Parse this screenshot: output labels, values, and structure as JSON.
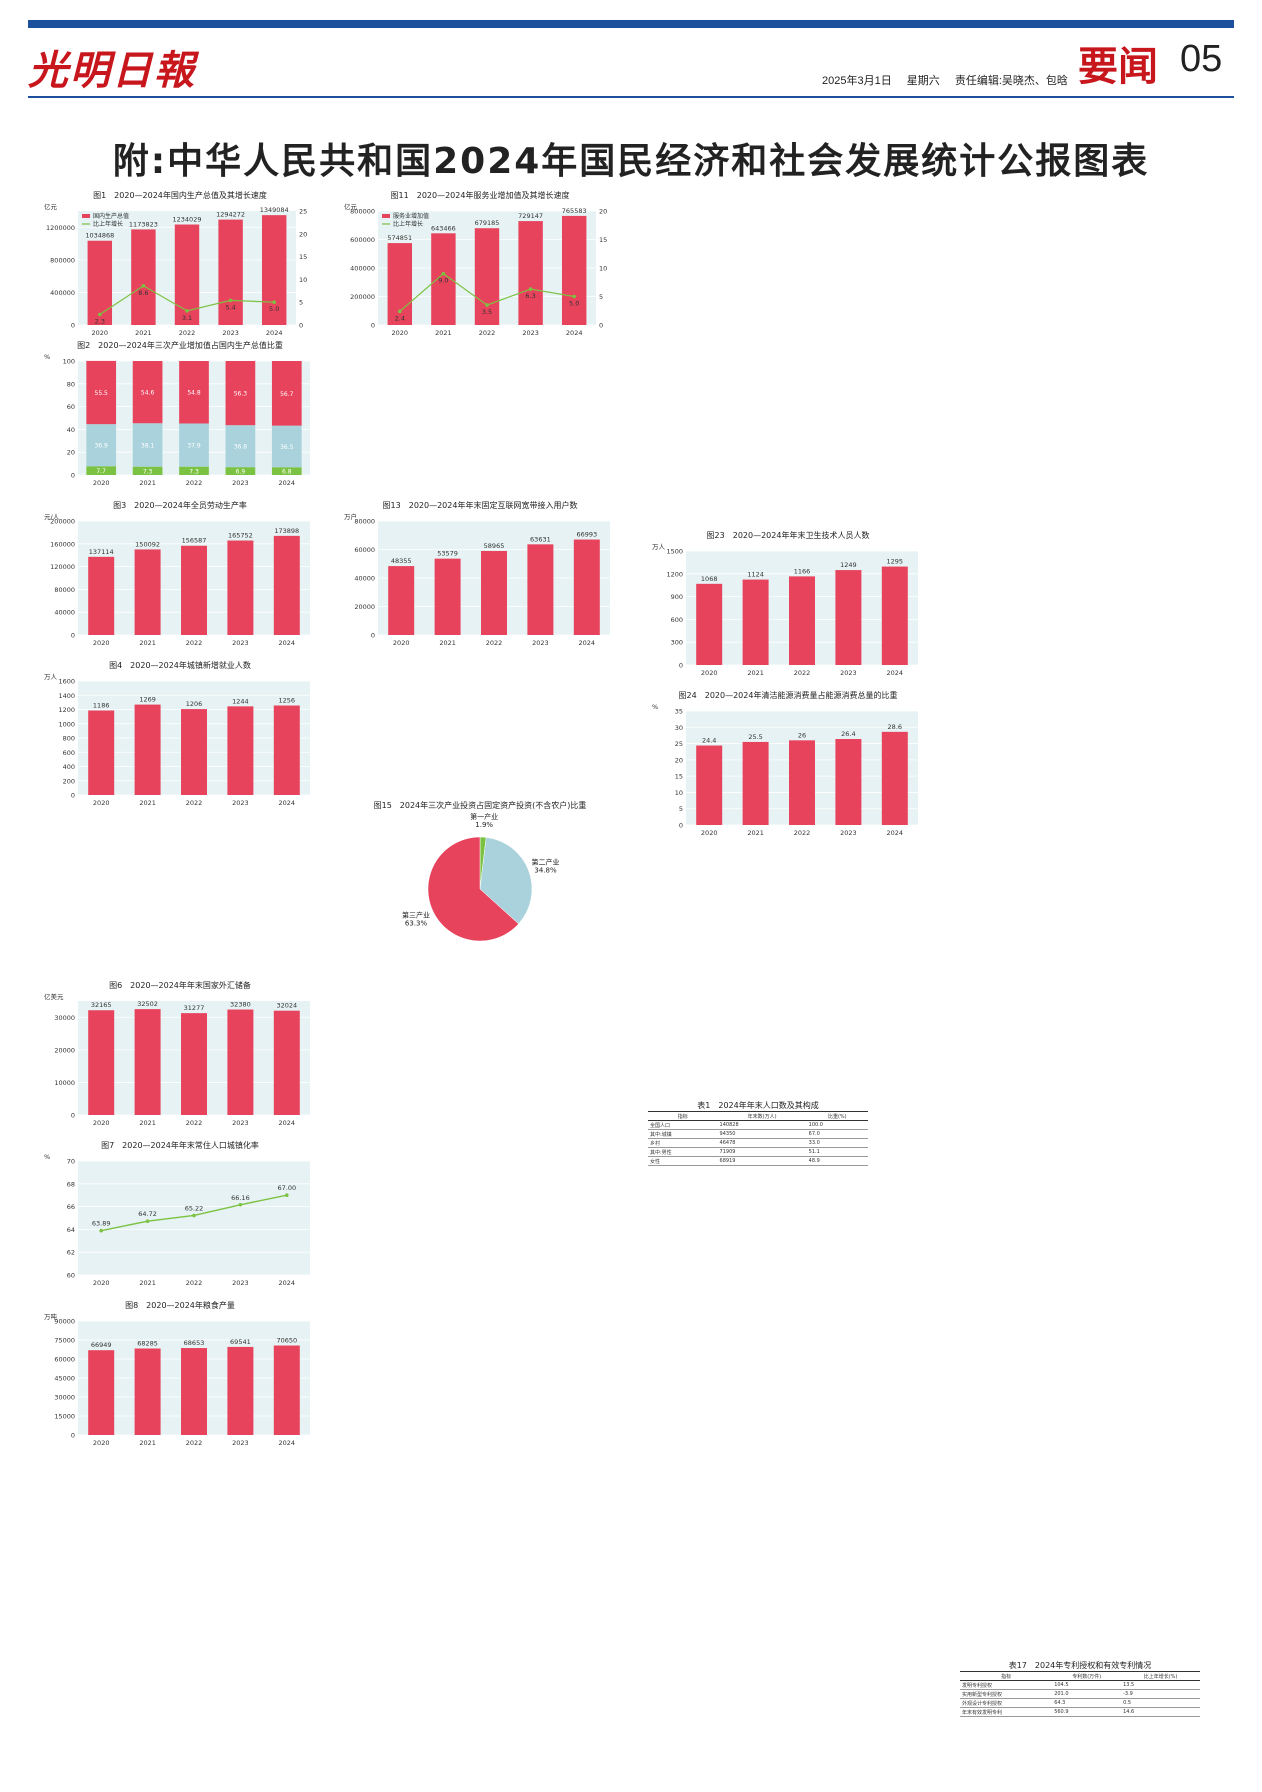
{
  "masthead": {
    "logo": "光明日報",
    "date": "2025年3月1日",
    "weekday": "星期六",
    "editors": "责任编辑:吴晓杰、包晗",
    "section": "要闻",
    "page_number": "05",
    "colors": {
      "brand_red": "#c8161d",
      "rule_blue": "#1c4f9c"
    }
  },
  "headline": "附:中华人民共和国2024年国民经济和社会发展统计公报图表",
  "chart_data": [
    {
      "id": "fig1",
      "type": "bar",
      "title": "图1　2020—2024年国内生产总值及其增长速度",
      "ylabel": "亿元",
      "y2label": "%",
      "categories": [
        "2020",
        "2021",
        "2022",
        "2023",
        "2024"
      ],
      "series": [
        {
          "name": "国内生产总值",
          "values": [
            1034868,
            1173823,
            1234029,
            1294272,
            1349084
          ]
        },
        {
          "name": "比上年增长",
          "values": [
            2.3,
            8.6,
            3.1,
            5.4,
            5.0
          ]
        }
      ],
      "ylim": [
        0,
        1400000
      ],
      "y2lim": [
        0,
        25
      ],
      "yticks": [
        "0",
        "400000",
        "800000",
        "1200000"
      ],
      "y2ticks": [
        "0",
        "5",
        "10",
        "15",
        "20",
        "25"
      ]
    },
    {
      "id": "fig2",
      "type": "bar",
      "title": "图2　2020—2024年三次产业增加值占国内生产总值比重",
      "ylabel": "%",
      "categories": [
        "2020",
        "2021",
        "2022",
        "2023",
        "2024"
      ],
      "series": [
        {
          "name": "第一产业",
          "values": [
            7.7,
            7.3,
            7.3,
            6.9,
            6.8
          ]
        },
        {
          "name": "第二产业",
          "values": [
            36.9,
            38.1,
            37.9,
            36.8,
            36.5
          ]
        },
        {
          "name": "第三产业",
          "values": [
            55.5,
            54.6,
            54.8,
            56.3,
            56.7
          ]
        }
      ],
      "ylim": [
        0,
        100
      ],
      "yticks": [
        "0",
        "20",
        "40",
        "60",
        "80",
        "100"
      ]
    },
    {
      "id": "fig3",
      "type": "bar",
      "title": "图3　2020—2024年全员劳动生产率",
      "ylabel": "元/人",
      "categories": [
        "2020",
        "2021",
        "2022",
        "2023",
        "2024"
      ],
      "series": [
        {
          "name": "",
          "values": [
            137114,
            150092,
            156587,
            165752,
            173898
          ]
        }
      ],
      "ylim": [
        0,
        200000
      ],
      "yticks": [
        "0",
        "40000",
        "80000",
        "120000",
        "160000",
        "200000"
      ]
    },
    {
      "id": "fig4",
      "type": "bar",
      "title": "图4　2020—2024年城镇新增就业人数",
      "ylabel": "万人",
      "categories": [
        "2020",
        "2021",
        "2022",
        "2023",
        "2024"
      ],
      "series": [
        {
          "name": "",
          "values": [
            1186,
            1269,
            1206,
            1244,
            1256
          ]
        }
      ],
      "ylim": [
        0,
        1600
      ],
      "yticks": [
        "0",
        "200",
        "400",
        "600",
        "800",
        "1000",
        "1200",
        "1400",
        "1600"
      ]
    },
    {
      "id": "fig6",
      "type": "bar",
      "title": "图6　2020—2024年年末国家外汇储备",
      "ylabel": "亿美元",
      "categories": [
        "2020",
        "2021",
        "2022",
        "2023",
        "2024"
      ],
      "series": [
        {
          "name": "",
          "values": [
            32165,
            32502,
            31277,
            32380,
            32024
          ]
        }
      ],
      "ylim": [
        0,
        35000
      ],
      "yticks": [
        "0",
        "10000",
        "20000",
        "30000"
      ]
    },
    {
      "id": "fig8",
      "type": "bar",
      "title": "图8　2020—2024年粮食产量",
      "ylabel": "万吨",
      "categories": [
        "2020",
        "2021",
        "2022",
        "2023",
        "2024"
      ],
      "series": [
        {
          "name": "",
          "values": [
            66949,
            68285,
            68653,
            69541,
            70650
          ]
        }
      ],
      "ylim": [
        0,
        90000
      ],
      "yticks": [
        "0",
        "15000",
        "30000",
        "45000",
        "60000",
        "75000",
        "90000"
      ]
    },
    {
      "id": "fig11",
      "type": "bar",
      "title": "图11　2020—2024年服务业增加值及其增长速度",
      "ylabel": "亿元",
      "y2label": "%",
      "categories": [
        "2020",
        "2021",
        "2022",
        "2023",
        "2024"
      ],
      "series": [
        {
          "name": "服务业增加值",
          "values": [
            574851,
            643466,
            679185,
            729147,
            765583
          ]
        },
        {
          "name": "比上年增长",
          "values": [
            2.4,
            9.0,
            3.5,
            6.3,
            5.0
          ]
        }
      ],
      "ylim": [
        0,
        800000
      ],
      "y2lim": [
        0,
        20
      ],
      "yticks": [
        "0",
        "200000",
        "400000",
        "600000",
        "800000"
      ],
      "y2ticks": [
        "0",
        "5",
        "10",
        "15",
        "20"
      ]
    },
    {
      "id": "fig13",
      "type": "bar",
      "title": "图13　2020—2024年年末固定互联网宽带接入用户数",
      "ylabel": "万户",
      "categories": [
        "2020",
        "2021",
        "2022",
        "2023",
        "2024"
      ],
      "series": [
        {
          "name": "",
          "values": [
            48355,
            53579,
            58965,
            63631,
            66993
          ]
        }
      ],
      "ylim": [
        0,
        80000
      ],
      "yticks": [
        "0",
        "20000",
        "40000",
        "60000",
        "80000"
      ]
    },
    {
      "id": "fig23",
      "type": "bar",
      "title": "图23　2020—2024年年末卫生技术人员人数",
      "ylabel": "万人",
      "categories": [
        "2020",
        "2021",
        "2022",
        "2023",
        "2024"
      ],
      "series": [
        {
          "name": "",
          "values": [
            1068,
            1124,
            1166,
            1249,
            1295
          ]
        }
      ],
      "ylim": [
        0,
        1500
      ],
      "yticks": [
        "0",
        "300",
        "600",
        "900",
        "1200",
        "1500"
      ]
    },
    {
      "id": "fig24",
      "type": "bar",
      "title": "图24　2020—2024年清洁能源消费量占能源消费总量的比重",
      "ylabel": "%",
      "categories": [
        "2020",
        "2021",
        "2022",
        "2023",
        "2024"
      ],
      "series": [
        {
          "name": "",
          "values": [
            24.4,
            25.5,
            26.0,
            26.4,
            28.6
          ]
        }
      ],
      "ylim": [
        0,
        35
      ],
      "yticks": [
        "0",
        "5",
        "10",
        "15",
        "20",
        "25",
        "30",
        "35"
      ]
    },
    {
      "id": "fig15",
      "type": "pie",
      "title": "图15　2024年三次产业投资占固定资产投资(不含农户)比重",
      "slices": [
        {
          "name": "第一产业",
          "value": 1.9
        },
        {
          "name": "第二产业",
          "value": 34.8
        },
        {
          "name": "第三产业",
          "value": 63.3
        }
      ]
    },
    {
      "id": "fig7",
      "type": "line",
      "title": "图7　2020—2024年年末常住人口城镇化率",
      "ylabel": "%",
      "categories": [
        "2020",
        "2021",
        "2022",
        "2023",
        "2024"
      ],
      "series": [
        {
          "name": "",
          "values": [
            63.89,
            64.72,
            65.22,
            66.16,
            67.0
          ]
        }
      ],
      "ylim": [
        60,
        70
      ],
      "yticks": [
        "60",
        "62",
        "64",
        "66",
        "68",
        "70"
      ]
    }
  ],
  "tables": [
    {
      "title": "表1　2024年年末人口数及其构成",
      "headers": [
        "指标",
        "年末数(万人)",
        "比重(%)"
      ],
      "rows": [
        [
          "全国人口",
          "140828",
          "100.0"
        ],
        [
          "其中:城镇",
          "94350",
          "67.0"
        ],
        [
          "乡村",
          "46478",
          "33.0"
        ],
        [
          "其中:男性",
          "71909",
          "51.1"
        ],
        [
          "女性",
          "68919",
          "48.9"
        ]
      ]
    },
    {
      "title": "表17　2024年专利授权和有效专利情况",
      "headers": [
        "指标",
        "专利数(万件)",
        "比上年增长(%)"
      ],
      "rows": [
        [
          "发明专利授权",
          "104.5",
          "13.5"
        ],
        [
          "实用新型专利授权",
          "201.0",
          "-3.9"
        ],
        [
          "外观设计专利授权",
          "64.3",
          "0.5"
        ],
        [
          "年末有效发明专利",
          "560.9",
          "14.6"
        ]
      ]
    }
  ]
}
